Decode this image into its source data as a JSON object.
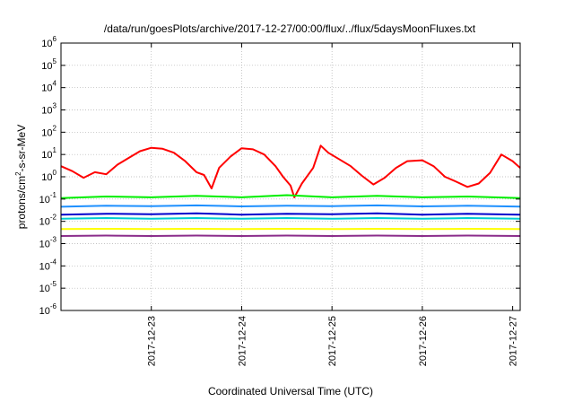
{
  "chart_data": {
    "type": "line",
    "title": "/data/run/goesPlots/archive/2017-12-27/00:00/flux/../flux/5daysMoonFluxes.txt",
    "xlabel": "Coordinated Universal Time (UTC)",
    "ylabel": "protons/cm²-s-sr-MeV",
    "yscale": "log",
    "ylim": [
      1e-06,
      1000000.0
    ],
    "xlim": [
      "2017-12-22 00:00",
      "2017-12-27 02:00"
    ],
    "x_ticks": [
      "2017-12-23",
      "2017-12-24",
      "2017-12-25",
      "2017-12-26",
      "2017-12-27"
    ],
    "y_ticks": [
      {
        "value": 1e-06,
        "base": "10",
        "exp": "-6"
      },
      {
        "value": 1e-05,
        "base": "10",
        "exp": "-5"
      },
      {
        "value": 0.0001,
        "base": "10",
        "exp": "-4"
      },
      {
        "value": 0.001,
        "base": "10",
        "exp": "-3"
      },
      {
        "value": 0.01,
        "base": "10",
        "exp": "-2"
      },
      {
        "value": 0.1,
        "base": "10",
        "exp": "-1"
      },
      {
        "value": 1,
        "base": "10",
        "exp": "0"
      },
      {
        "value": 10.0,
        "base": "10",
        "exp": "1"
      },
      {
        "value": 100.0,
        "base": "10",
        "exp": "2"
      },
      {
        "value": 1000.0,
        "base": "10",
        "exp": "3"
      },
      {
        "value": 10000.0,
        "base": "10",
        "exp": "4"
      },
      {
        "value": 100000.0,
        "base": "10",
        "exp": "5"
      },
      {
        "value": 1000000.0,
        "base": "10",
        "exp": "6"
      }
    ],
    "grid": true,
    "series": [
      {
        "color": "#ff0000",
        "points": [
          [
            "2017-12-22 00:00",
            3.0
          ],
          [
            "2017-12-22 03:00",
            1.8
          ],
          [
            "2017-12-22 06:00",
            0.9
          ],
          [
            "2017-12-22 09:00",
            1.6
          ],
          [
            "2017-12-22 12:00",
            1.3
          ],
          [
            "2017-12-22 15:00",
            3.5
          ],
          [
            "2017-12-22 18:00",
            7.0
          ],
          [
            "2017-12-22 21:00",
            14
          ],
          [
            "2017-12-23 00:00",
            20
          ],
          [
            "2017-12-23 03:00",
            18
          ],
          [
            "2017-12-23 06:00",
            12
          ],
          [
            "2017-12-23 09:00",
            5
          ],
          [
            "2017-12-23 12:00",
            1.6
          ],
          [
            "2017-12-23 14:00",
            1.2
          ],
          [
            "2017-12-23 16:00",
            0.3
          ],
          [
            "2017-12-23 18:00",
            2.5
          ],
          [
            "2017-12-23 21:00",
            8
          ],
          [
            "2017-12-24 00:00",
            19
          ],
          [
            "2017-12-24 03:00",
            17
          ],
          [
            "2017-12-24 06:00",
            10
          ],
          [
            "2017-12-24 09:00",
            3
          ],
          [
            "2017-12-24 11:00",
            1.0
          ],
          [
            "2017-12-24 13:00",
            0.4
          ],
          [
            "2017-12-24 14:00",
            0.12
          ],
          [
            "2017-12-24 16:00",
            0.5
          ],
          [
            "2017-12-24 19:00",
            2.5
          ],
          [
            "2017-12-24 21:00",
            25
          ],
          [
            "2017-12-24 23:00",
            12
          ],
          [
            "2017-12-25 02:00",
            6
          ],
          [
            "2017-12-25 05:00",
            3.0
          ],
          [
            "2017-12-25 08:00",
            1.1
          ],
          [
            "2017-12-25 11:00",
            0.45
          ],
          [
            "2017-12-25 14:00",
            0.9
          ],
          [
            "2017-12-25 17:00",
            2.5
          ],
          [
            "2017-12-25 20:00",
            5
          ],
          [
            "2017-12-26 00:00",
            5.5
          ],
          [
            "2017-12-26 03:00",
            3.0
          ],
          [
            "2017-12-26 06:00",
            1.0
          ],
          [
            "2017-12-26 09:00",
            0.6
          ],
          [
            "2017-12-26 12:00",
            0.35
          ],
          [
            "2017-12-26 15:00",
            0.5
          ],
          [
            "2017-12-26 18:00",
            1.5
          ],
          [
            "2017-12-26 21:00",
            10
          ],
          [
            "2017-12-27 00:00",
            5
          ],
          [
            "2017-12-27 02:00",
            2.5
          ]
        ]
      },
      {
        "color": "#00ee00",
        "points": [
          [
            "2017-12-22 00:00",
            0.11
          ],
          [
            "2017-12-22 12:00",
            0.13
          ],
          [
            "2017-12-23 00:00",
            0.12
          ],
          [
            "2017-12-23 12:00",
            0.14
          ],
          [
            "2017-12-24 00:00",
            0.12
          ],
          [
            "2017-12-24 12:00",
            0.15
          ],
          [
            "2017-12-25 00:00",
            0.12
          ],
          [
            "2017-12-25 12:00",
            0.14
          ],
          [
            "2017-12-26 00:00",
            0.12
          ],
          [
            "2017-12-26 12:00",
            0.13
          ],
          [
            "2017-12-27 02:00",
            0.11
          ]
        ]
      },
      {
        "color": "#1e90ff",
        "points": [
          [
            "2017-12-22 00:00",
            0.045
          ],
          [
            "2017-12-22 12:00",
            0.05
          ],
          [
            "2017-12-23 00:00",
            0.048
          ],
          [
            "2017-12-23 12:00",
            0.052
          ],
          [
            "2017-12-24 00:00",
            0.047
          ],
          [
            "2017-12-24 12:00",
            0.05
          ],
          [
            "2017-12-25 00:00",
            0.048
          ],
          [
            "2017-12-25 12:00",
            0.052
          ],
          [
            "2017-12-26 00:00",
            0.047
          ],
          [
            "2017-12-26 12:00",
            0.05
          ],
          [
            "2017-12-27 02:00",
            0.046
          ]
        ]
      },
      {
        "color": "#0000cd",
        "points": [
          [
            "2017-12-22 00:00",
            0.02
          ],
          [
            "2017-12-22 12:00",
            0.022
          ],
          [
            "2017-12-23 00:00",
            0.021
          ],
          [
            "2017-12-23 12:00",
            0.023
          ],
          [
            "2017-12-24 00:00",
            0.02
          ],
          [
            "2017-12-24 12:00",
            0.022
          ],
          [
            "2017-12-25 00:00",
            0.021
          ],
          [
            "2017-12-25 12:00",
            0.023
          ],
          [
            "2017-12-26 00:00",
            0.02
          ],
          [
            "2017-12-26 12:00",
            0.022
          ],
          [
            "2017-12-27 02:00",
            0.02
          ]
        ]
      },
      {
        "color": "#00ced1",
        "points": [
          [
            "2017-12-22 00:00",
            0.013
          ],
          [
            "2017-12-22 12:00",
            0.014
          ],
          [
            "2017-12-23 00:00",
            0.013
          ],
          [
            "2017-12-23 12:00",
            0.014
          ],
          [
            "2017-12-24 00:00",
            0.013
          ],
          [
            "2017-12-24 12:00",
            0.014
          ],
          [
            "2017-12-25 00:00",
            0.013
          ],
          [
            "2017-12-25 12:00",
            0.014
          ],
          [
            "2017-12-26 00:00",
            0.013
          ],
          [
            "2017-12-26 12:00",
            0.014
          ],
          [
            "2017-12-27 02:00",
            0.013
          ]
        ]
      },
      {
        "color": "#ffff00",
        "points": [
          [
            "2017-12-22 00:00",
            0.0045
          ],
          [
            "2017-12-22 12:00",
            0.0046
          ],
          [
            "2017-12-23 00:00",
            0.0045
          ],
          [
            "2017-12-23 12:00",
            0.0046
          ],
          [
            "2017-12-24 00:00",
            0.0045
          ],
          [
            "2017-12-24 12:00",
            0.0046
          ],
          [
            "2017-12-25 00:00",
            0.0045
          ],
          [
            "2017-12-25 12:00",
            0.0046
          ],
          [
            "2017-12-26 00:00",
            0.0045
          ],
          [
            "2017-12-26 12:00",
            0.0046
          ],
          [
            "2017-12-27 02:00",
            0.0045
          ]
        ]
      },
      {
        "color": "#8b2d8b",
        "points": [
          [
            "2017-12-22 00:00",
            0.0022
          ],
          [
            "2017-12-22 12:00",
            0.0023
          ],
          [
            "2017-12-23 00:00",
            0.0022
          ],
          [
            "2017-12-23 12:00",
            0.0023
          ],
          [
            "2017-12-24 00:00",
            0.0022
          ],
          [
            "2017-12-24 12:00",
            0.0023
          ],
          [
            "2017-12-25 00:00",
            0.0022
          ],
          [
            "2017-12-25 12:00",
            0.0023
          ],
          [
            "2017-12-26 00:00",
            0.0022
          ],
          [
            "2017-12-26 12:00",
            0.0023
          ],
          [
            "2017-12-27 02:00",
            0.0022
          ]
        ]
      }
    ]
  }
}
